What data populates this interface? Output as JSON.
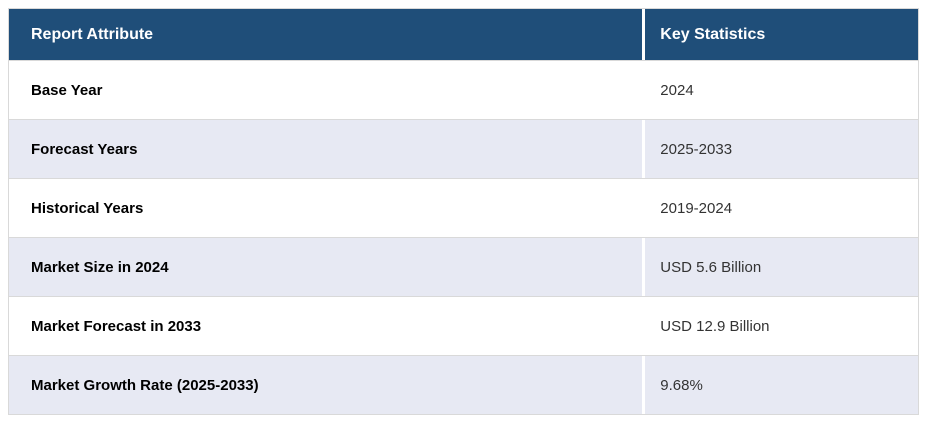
{
  "chart_data": {
    "type": "table",
    "columns": [
      "Report Attribute",
      "Key Statistics"
    ],
    "rows": [
      {
        "attribute": "Base Year",
        "value": "2024"
      },
      {
        "attribute": "Forecast Years",
        "value": "2025-2033"
      },
      {
        "attribute": "Historical Years",
        "value": "2019-2024"
      },
      {
        "attribute": "Market Size in 2024",
        "value": "USD 5.6 Billion"
      },
      {
        "attribute": "Market Forecast in 2033",
        "value": "USD 12.9 Billion"
      },
      {
        "attribute": "Market Growth Rate (2025-2033)",
        "value": "9.68%"
      }
    ]
  },
  "colors": {
    "header_bg": "#1f4e79",
    "header_text": "#ffffff",
    "stripe_bg": "#e7e9f3",
    "row_bg": "#ffffff",
    "border": "#d9d9d9",
    "label_text": "#000000",
    "value_text": "#333333"
  }
}
